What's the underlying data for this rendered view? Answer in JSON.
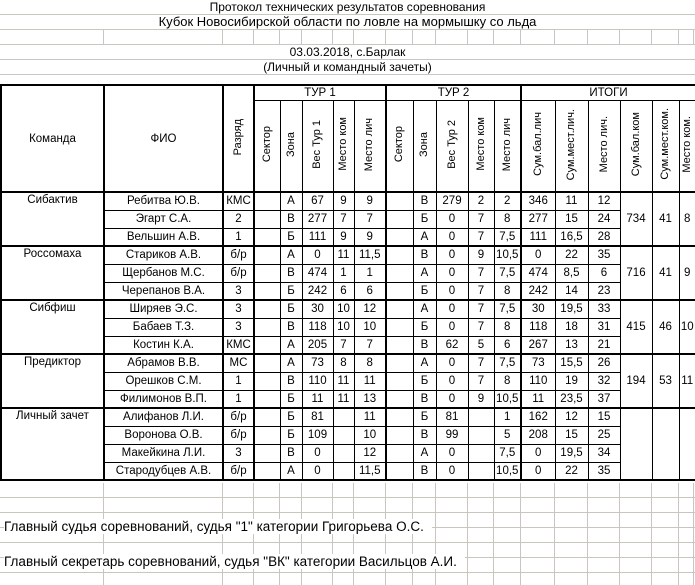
{
  "titles": {
    "line1": "Протокол технических результатов соревнования",
    "line2": "Кубок Новосибирской области по ловле на мормышку со льда",
    "date_place": "03.03.2018, с.Барлак",
    "subtitle": "(Личный и командный зачеты)"
  },
  "table": {
    "headers": {
      "team": "Команда",
      "name": "ФИО",
      "rank": "Разряд",
      "tour1": "ТУР 1",
      "tour2": "ТУР 2",
      "totals": "ИТОГИ",
      "tour1_cols": [
        "Сектор",
        "Зона",
        "Вес Тур 1",
        "Место ком",
        "Место лич"
      ],
      "tour2_cols": [
        "Сектор",
        "Зона",
        "Вес Тур 2",
        "Место ком",
        "Место лич"
      ],
      "totals_cols": [
        "Сум.бал.лич",
        "Сум.мест.лич.",
        "Место лич.",
        "Сум.бал.ком",
        "Сум.мест.ком.",
        "Место ком."
      ]
    },
    "teams": [
      {
        "name": "Сибактив",
        "team_sum_score": "734",
        "team_sum_places": "41",
        "team_place": "8",
        "rows": [
          {
            "fio": "Ребитва Ю.В.",
            "rank": "КМС",
            "t1": [
              "",
              "А",
              "67",
              "9",
              "9"
            ],
            "t2": [
              "",
              "В",
              "279",
              "2",
              "2"
            ],
            "tot": [
              "346",
              "11",
              "12"
            ]
          },
          {
            "fio": "Эгарт С.А.",
            "rank": "2",
            "t1": [
              "",
              "В",
              "277",
              "7",
              "7"
            ],
            "t2": [
              "",
              "Б",
              "0",
              "7",
              "8"
            ],
            "tot": [
              "277",
              "15",
              "24"
            ]
          },
          {
            "fio": "Вельшин А.В.",
            "rank": "1",
            "t1": [
              "",
              "Б",
              "111",
              "9",
              "9"
            ],
            "t2": [
              "",
              "А",
              "0",
              "7",
              "7,5"
            ],
            "tot": [
              "111",
              "16,5",
              "28"
            ]
          }
        ]
      },
      {
        "name": "Россомаха",
        "team_sum_score": "716",
        "team_sum_places": "41",
        "team_place": "9",
        "rows": [
          {
            "fio": "Стариков А.В.",
            "rank": "б/р",
            "t1": [
              "",
              "А",
              "0",
              "11",
              "11,5"
            ],
            "t2": [
              "",
              "В",
              "0",
              "9",
              "10,5"
            ],
            "tot": [
              "0",
              "22",
              "35"
            ]
          },
          {
            "fio": "Щербанов М.С.",
            "rank": "б/р",
            "t1": [
              "",
              "В",
              "474",
              "1",
              "1"
            ],
            "t2": [
              "",
              "А",
              "0",
              "7",
              "7,5"
            ],
            "tot": [
              "474",
              "8,5",
              "6"
            ]
          },
          {
            "fio": "Черепанов В.А.",
            "rank": "3",
            "t1": [
              "",
              "Б",
              "242",
              "6",
              "6"
            ],
            "t2": [
              "",
              "Б",
              "0",
              "7",
              "8"
            ],
            "tot": [
              "242",
              "14",
              "23"
            ]
          }
        ]
      },
      {
        "name": "Сибфиш",
        "team_sum_score": "415",
        "team_sum_places": "46",
        "team_place": "10",
        "rows": [
          {
            "fio": "Ширяев Э.С.",
            "rank": "3",
            "t1": [
              "",
              "Б",
              "30",
              "10",
              "12"
            ],
            "t2": [
              "",
              "А",
              "0",
              "7",
              "7,5"
            ],
            "tot": [
              "30",
              "19,5",
              "33"
            ]
          },
          {
            "fio": "Бабаев Т.З.",
            "rank": "3",
            "t1": [
              "",
              "В",
              "118",
              "10",
              "10"
            ],
            "t2": [
              "",
              "Б",
              "0",
              "7",
              "8"
            ],
            "tot": [
              "118",
              "18",
              "31"
            ]
          },
          {
            "fio": "Костин К.А.",
            "rank": "КМС",
            "t1": [
              "",
              "А",
              "205",
              "7",
              "7"
            ],
            "t2": [
              "",
              "В",
              "62",
              "5",
              "6"
            ],
            "tot": [
              "267",
              "13",
              "21"
            ]
          }
        ]
      },
      {
        "name": "Предиктор",
        "team_sum_score": "194",
        "team_sum_places": "53",
        "team_place": "11",
        "rows": [
          {
            "fio": "Абрамов В.В.",
            "rank": "МС",
            "t1": [
              "",
              "А",
              "73",
              "8",
              "8"
            ],
            "t2": [
              "",
              "А",
              "0",
              "7",
              "7,5"
            ],
            "tot": [
              "73",
              "15,5",
              "26"
            ]
          },
          {
            "fio": "Орешков С.М.",
            "rank": "1",
            "t1": [
              "",
              "В",
              "110",
              "11",
              "11"
            ],
            "t2": [
              "",
              "Б",
              "0",
              "7",
              "8"
            ],
            "tot": [
              "110",
              "19",
              "32"
            ]
          },
          {
            "fio": "Филимонов В.П.",
            "rank": "1",
            "t1": [
              "",
              "Б",
              "11",
              "11",
              "13"
            ],
            "t2": [
              "",
              "В",
              "0",
              "9",
              "10,5"
            ],
            "tot": [
              "11",
              "23,5",
              "37"
            ]
          }
        ]
      },
      {
        "name": "Личный зачет",
        "team_sum_score": "",
        "team_sum_places": "",
        "team_place": "",
        "rows": [
          {
            "fio": "Алифанов Л.И.",
            "rank": "б/р",
            "t1": [
              "",
              "Б",
              "81",
              "",
              "11"
            ],
            "t2": [
              "",
              "Б",
              "81",
              "",
              "1"
            ],
            "tot": [
              "162",
              "12",
              "15"
            ]
          },
          {
            "fio": "Воронова О.В.",
            "rank": "б/р",
            "t1": [
              "",
              "Б",
              "109",
              "",
              "10"
            ],
            "t2": [
              "",
              "В",
              "99",
              "",
              "5"
            ],
            "tot": [
              "208",
              "15",
              "25"
            ]
          },
          {
            "fio": "Макейкина Л.И.",
            "rank": "3",
            "t1": [
              "",
              "В",
              "0",
              "",
              "12"
            ],
            "t2": [
              "",
              "А",
              "0",
              "",
              "7,5"
            ],
            "tot": [
              "0",
              "19,5",
              "34"
            ]
          },
          {
            "fio": "Стародубцев А.В.",
            "rank": "б/р",
            "t1": [
              "",
              "А",
              "0",
              "",
              "11,5"
            ],
            "t2": [
              "",
              "В",
              "0",
              "",
              "10,5"
            ],
            "tot": [
              "0",
              "22",
              "35"
            ]
          }
        ]
      }
    ]
  },
  "footer": {
    "judge": "Главный судья соревнований, судья \"1\" категории Григорьева О.С.",
    "secretary": "Главный секретарь соревнований, судья \"ВК\" категории Васильцов А.И."
  }
}
